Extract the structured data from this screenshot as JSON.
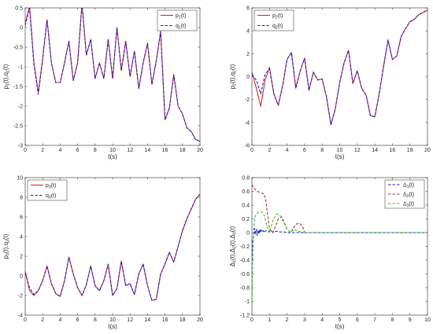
{
  "chart_data": [
    {
      "type": "line",
      "xlabel": "t(s)",
      "ylabel": {
        "main": "p",
        "sub1": "1",
        "mid": "(t),q",
        "sub2": "1",
        "end": "(t)"
      },
      "xlim": [
        0,
        20
      ],
      "ylim": [
        -3,
        0.5
      ],
      "xticks": [
        "0",
        "2",
        "4",
        "6",
        "8",
        "10",
        "12",
        "14",
        "16",
        "18",
        "20"
      ],
      "yticks": [
        "0.5",
        "0",
        "-0.5",
        "-1",
        "-1.5",
        "-2",
        "-2.5",
        "-3"
      ],
      "legend_position": "top-right",
      "series": [
        {
          "name": "p1(t)",
          "label": {
            "main": "p",
            "sub": "1",
            "end": "(t)"
          },
          "color": "#d62728",
          "style": "solid",
          "x": [
            0,
            0.5,
            1,
            1.5,
            2,
            2.5,
            3,
            3.5,
            4,
            4.5,
            5,
            5.5,
            6,
            6.5,
            7,
            7.5,
            8,
            8.5,
            9,
            9.5,
            10,
            10.5,
            11,
            11.5,
            12,
            12.5,
            13,
            13.5,
            14,
            14.5,
            15,
            15.5,
            16,
            16.5,
            17,
            17.5,
            18,
            18.5,
            19,
            19.5,
            20
          ],
          "y": [
            0.1,
            0.55,
            -0.9,
            -1.65,
            -0.8,
            0.2,
            -0.9,
            -1.4,
            -1.4,
            -0.9,
            -0.35,
            -1.35,
            -0.9,
            0.6,
            -0.7,
            -0.3,
            -1.3,
            -0.9,
            -1.3,
            -0.3,
            -1.3,
            0.0,
            -1.1,
            -0.35,
            -1.25,
            -0.6,
            -1.55,
            -0.9,
            -0.4,
            -1.45,
            -0.85,
            -0.1,
            -2.35,
            -2.05,
            -1.2,
            -2.0,
            -2.2,
            -2.55,
            -2.65,
            -2.85,
            -2.9
          ]
        },
        {
          "name": "q1(t)",
          "label": {
            "main": "q",
            "sub": "1",
            "end": "(t)"
          },
          "color": "#1f1fcf",
          "style": "dashed",
          "x": [
            0,
            0.5,
            1,
            1.5,
            2,
            2.5,
            3,
            3.5,
            4,
            4.5,
            5,
            5.5,
            6,
            6.5,
            7,
            7.5,
            8,
            8.5,
            9,
            9.5,
            10,
            10.5,
            11,
            11.5,
            12,
            12.5,
            13,
            13.5,
            14,
            14.5,
            15,
            15.5,
            16,
            16.5,
            17,
            17.5,
            18,
            18.5,
            19,
            19.5,
            20
          ],
          "y": [
            0.05,
            0.5,
            -0.95,
            -1.7,
            -0.8,
            0.2,
            -0.9,
            -1.4,
            -1.4,
            -0.9,
            -0.35,
            -1.35,
            -0.9,
            0.6,
            -0.7,
            -0.3,
            -1.3,
            -0.9,
            -1.3,
            -0.3,
            -1.3,
            0.0,
            -1.1,
            -0.35,
            -1.25,
            -0.6,
            -1.55,
            -0.9,
            -0.4,
            -1.45,
            -0.85,
            -0.1,
            -2.35,
            -2.05,
            -1.2,
            -2.0,
            -2.2,
            -2.55,
            -2.65,
            -2.85,
            -2.9
          ]
        }
      ]
    },
    {
      "type": "line",
      "xlabel": "t(s)",
      "ylabel": {
        "main": "p",
        "sub1": "2",
        "mid": "(t),q",
        "sub2": "2",
        "end": "(t)"
      },
      "xlim": [
        0,
        20
      ],
      "ylim": [
        -6,
        6
      ],
      "xticks": [
        "0",
        "2",
        "4",
        "6",
        "8",
        "10",
        "12",
        "14",
        "16",
        "18",
        "20"
      ],
      "yticks": [
        "6",
        "4",
        "2",
        "0",
        "-2",
        "-4",
        "-6"
      ],
      "legend_position": "top-left",
      "series": [
        {
          "name": "p2(t)",
          "label": {
            "main": "p",
            "sub": "2",
            "end": "(t)"
          },
          "color": "#d62728",
          "style": "solid",
          "x": [
            0,
            0.5,
            1,
            1.5,
            2,
            2.5,
            3,
            3.5,
            4,
            4.5,
            5,
            5.5,
            6,
            6.5,
            7,
            7.5,
            8,
            8.5,
            9,
            9.5,
            10,
            10.5,
            11,
            11.5,
            12,
            12.5,
            13,
            13.5,
            14,
            14.5,
            15,
            15.5,
            16,
            16.5,
            17,
            17.5,
            18,
            18.5,
            19,
            19.5,
            20
          ],
          "y": [
            0.4,
            -1.0,
            -2.6,
            -0.3,
            0.8,
            -1.5,
            -2.5,
            -0.8,
            1.5,
            2.1,
            -1.0,
            0.5,
            1.6,
            -1.2,
            0.4,
            -0.3,
            -0.2,
            -1.8,
            -4.2,
            -2.8,
            -0.5,
            1.2,
            2.3,
            -0.6,
            0.5,
            -1.0,
            -1.6,
            -3.4,
            -3.5,
            -1.5,
            0.9,
            3.2,
            1.5,
            1.8,
            3.5,
            4.2,
            4.8,
            5.0,
            5.4,
            5.6,
            5.8
          ]
        },
        {
          "name": "q2(t)",
          "label": {
            "main": "q",
            "sub": "2",
            "end": "(t)"
          },
          "color": "#1f1fcf",
          "style": "dashed",
          "x": [
            0,
            0.5,
            1,
            1.5,
            2,
            2.5,
            3,
            3.5,
            4,
            4.5,
            5,
            5.5,
            6,
            6.5,
            7,
            7.5,
            8,
            8.5,
            9,
            9.5,
            10,
            10.5,
            11,
            11.5,
            12,
            12.5,
            13,
            13.5,
            14,
            14.5,
            15,
            15.5,
            16,
            16.5,
            17,
            17.5,
            18,
            18.5,
            19,
            19.5,
            20
          ],
          "y": [
            0.2,
            -0.3,
            -1.5,
            0.2,
            0.7,
            -1.5,
            -2.5,
            -0.8,
            1.5,
            2.1,
            -1.0,
            0.5,
            1.6,
            -1.2,
            0.4,
            -0.3,
            -0.2,
            -1.8,
            -4.2,
            -2.8,
            -0.5,
            1.2,
            2.3,
            -0.6,
            0.5,
            -1.0,
            -1.6,
            -3.4,
            -3.5,
            -1.5,
            0.9,
            3.2,
            1.5,
            1.8,
            3.5,
            4.2,
            4.8,
            5.0,
            5.4,
            5.6,
            5.8
          ]
        }
      ]
    },
    {
      "type": "line",
      "xlabel": "t(s)",
      "ylabel": {
        "main": "p",
        "sub1": "3",
        "mid": "(t),q",
        "sub2": "3",
        "end": "(t)"
      },
      "xlim": [
        0,
        20
      ],
      "ylim": [
        -4,
        10
      ],
      "xticks": [
        "0",
        "2",
        "4",
        "6",
        "8",
        "10",
        "12",
        "14",
        "16",
        "18",
        "20"
      ],
      "yticks": [
        "10",
        "8",
        "6",
        "4",
        "2",
        "0",
        "-2",
        "-4"
      ],
      "legend_position": "top-left",
      "series": [
        {
          "name": "p3(t)",
          "label": {
            "main": "p",
            "sub": "3",
            "end": "(t)"
          },
          "color": "#d62728",
          "style": "solid",
          "x": [
            0,
            0.5,
            1,
            1.5,
            2,
            2.5,
            3,
            3.5,
            4,
            4.5,
            5,
            5.5,
            6,
            6.5,
            7,
            7.5,
            8,
            8.5,
            9,
            9.5,
            10,
            10.5,
            11,
            11.5,
            12,
            12.5,
            13,
            13.5,
            14,
            14.5,
            15,
            15.5,
            16,
            16.5,
            17,
            17.5,
            18,
            18.5,
            19,
            19.5,
            20
          ],
          "y": [
            0.5,
            -1.5,
            -2.0,
            -1.5,
            -0.5,
            1.0,
            -0.8,
            -1.8,
            -2.1,
            -0.5,
            1.9,
            0.2,
            -1.2,
            -2.0,
            -0.9,
            1.0,
            -1.0,
            -1.5,
            -0.5,
            1.2,
            -2.0,
            -1.3,
            1.5,
            -1.0,
            -0.8,
            -1.9,
            0.2,
            1.2,
            -1.0,
            -2.5,
            -2.4,
            0.2,
            1.2,
            2.4,
            1.4,
            3.0,
            4.6,
            5.8,
            6.8,
            7.8,
            8.3
          ]
        },
        {
          "name": "q3(t)",
          "label": {
            "main": "q",
            "sub": "3",
            "end": "(t)"
          },
          "color": "#1f1fcf",
          "style": "dashed",
          "x": [
            0,
            0.5,
            1,
            1.5,
            2,
            2.5,
            3,
            3.5,
            4,
            4.5,
            5,
            5.5,
            6,
            6.5,
            7,
            7.5,
            8,
            8.5,
            9,
            9.5,
            10,
            10.5,
            11,
            11.5,
            12,
            12.5,
            13,
            13.5,
            14,
            14.5,
            15,
            15.5,
            16,
            16.5,
            17,
            17.5,
            18,
            18.5,
            19,
            19.5,
            20
          ],
          "y": [
            0.3,
            -1.2,
            -1.9,
            -1.5,
            -0.5,
            1.0,
            -0.8,
            -1.8,
            -2.1,
            -0.5,
            1.9,
            0.2,
            -1.2,
            -2.0,
            -0.9,
            1.0,
            -1.0,
            -1.5,
            -0.5,
            1.2,
            -2.0,
            -1.3,
            1.5,
            -1.0,
            -0.8,
            -1.9,
            0.2,
            1.2,
            -1.0,
            -2.5,
            -2.4,
            0.2,
            1.2,
            2.4,
            1.4,
            3.0,
            4.6,
            5.8,
            6.8,
            7.8,
            8.3
          ]
        }
      ]
    },
    {
      "type": "line",
      "xlabel": "t(s)",
      "ylabel": {
        "main": "Δ",
        "sub1": "1",
        "mid": "(t),Δ",
        "sub2": "2",
        "mid2": "(t),Δ",
        "sub3": "3",
        "end": "(t)"
      },
      "xlim": [
        0,
        10
      ],
      "ylim": [
        -1.2,
        0.8
      ],
      "xticks": [
        "0",
        "1",
        "2",
        "3",
        "4",
        "5",
        "6",
        "7",
        "8",
        "9",
        "10"
      ],
      "yticks": [
        "0.8",
        "0.6",
        "0.4",
        "0.2",
        "0",
        "-0.2",
        "-0.4",
        "-0.6",
        "-0.8",
        "-1",
        "-1.2"
      ],
      "legend_position": "top-right",
      "series": [
        {
          "name": "Δ1(t)",
          "label": {
            "main": "Δ",
            "sub": "1",
            "end": "(t)"
          },
          "color": "#1f1fcf",
          "style": "dashed",
          "x": [
            0,
            0.05,
            0.1,
            0.15,
            0.2,
            0.25,
            0.3,
            0.35,
            0.4,
            0.45,
            0.5,
            0.55,
            0.6,
            0.65,
            0.7,
            0.75,
            0.8,
            0.9,
            1.0,
            1.1,
            1.2,
            1.4,
            1.6,
            1.8,
            2.0,
            2.5,
            3.0,
            4,
            5,
            6,
            7,
            8,
            9,
            10
          ],
          "y": [
            -0.4,
            -0.1,
            -0.05,
            0.06,
            -0.03,
            0.05,
            -0.04,
            0.04,
            -0.02,
            0.05,
            0.0,
            0.04,
            0.01,
            0.03,
            0.0,
            0.02,
            0.03,
            0.01,
            0.02,
            0.03,
            0.0,
            0.02,
            0.01,
            0.01,
            0.0,
            0.0,
            0,
            0,
            0,
            0,
            0,
            0,
            0,
            0
          ]
        },
        {
          "name": "Δ2(t)",
          "label": {
            "main": "Δ",
            "sub": "2",
            "end": "(t)"
          },
          "color": "#b5332b",
          "style": "dashed",
          "x": [
            0,
            0.1,
            0.3,
            0.5,
            0.7,
            0.8,
            0.9,
            1.0,
            1.2,
            1.5,
            1.7,
            2.0,
            2.2,
            2.5,
            2.7,
            2.9,
            3.0,
            3.2,
            4,
            5,
            6,
            7,
            8,
            9,
            10
          ],
          "y": [
            0.7,
            0.65,
            0.6,
            0.58,
            0.56,
            0.45,
            0.25,
            0.05,
            0.0,
            0.2,
            0.23,
            0.05,
            0.0,
            0.12,
            0.14,
            0.08,
            0.0,
            0.0,
            0,
            0,
            0,
            0,
            0,
            0,
            0
          ]
        },
        {
          "name": "Δ3(t)",
          "label": {
            "main": "Δ",
            "sub": "3",
            "end": "(t)"
          },
          "color": "#3fbf3f",
          "style": "dashed",
          "x": [
            0,
            0.03,
            0.06,
            0.1,
            0.15,
            0.2,
            0.3,
            0.4,
            0.5,
            0.6,
            0.7,
            0.8,
            0.9,
            1.0,
            1.2,
            1.4,
            1.6,
            1.8,
            2.0,
            2.2,
            2.4,
            2.6,
            3,
            4,
            5,
            6,
            7,
            8,
            9,
            10
          ],
          "y": [
            -1.1,
            -0.6,
            -0.2,
            0.05,
            0.2,
            0.25,
            0.28,
            0.3,
            0.3,
            0.3,
            0.25,
            0.15,
            0.05,
            0.0,
            0.18,
            0.27,
            0.25,
            0.15,
            0.05,
            0.0,
            0.05,
            0.02,
            0,
            0,
            0,
            0,
            0,
            0,
            0,
            0
          ]
        }
      ]
    }
  ]
}
